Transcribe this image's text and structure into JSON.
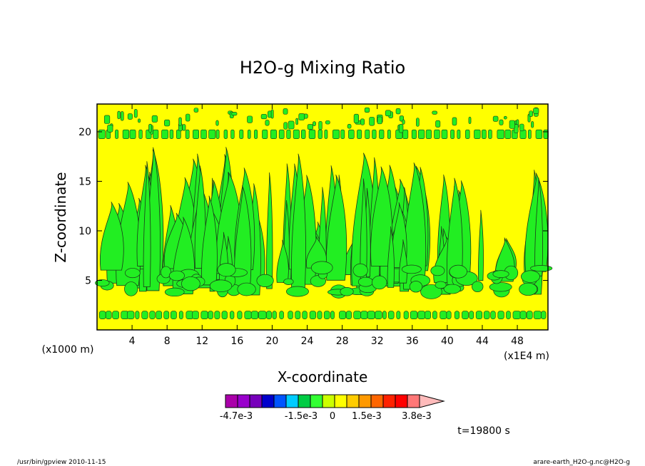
{
  "chart_data": {
    "type": "heatmap",
    "title": "H2O-g Mixing Ratio",
    "xlabel": "X-coordinate",
    "ylabel": "Z-coordinate",
    "x_unit": "(x1E4 m)",
    "y_unit": "(x1000 m)",
    "xlim": [
      0,
      51.5
    ],
    "ylim": [
      0,
      22.8
    ],
    "x_ticks": [
      4,
      8,
      12,
      16,
      20,
      24,
      28,
      32,
      36,
      40,
      44,
      48
    ],
    "y_ticks": [
      5,
      10,
      15,
      20
    ],
    "grid": false,
    "colorbar": {
      "colors": [
        "#aa00aa",
        "#9900cc",
        "#7700bb",
        "#0000cc",
        "#0055ff",
        "#00ccff",
        "#00cc44",
        "#33ff33",
        "#ccff00",
        "#ffff00",
        "#ffcc00",
        "#ff9900",
        "#ff6600",
        "#ff2200",
        "#ff0000",
        "#ff7777",
        "#ffbbbb"
      ],
      "labels": [
        "-4.7e-3",
        "-1.5e-3",
        "0",
        "1.5e-3",
        "3.8e-3"
      ]
    },
    "time_label": "t=19800 s",
    "dominant_fill": "#ffff00",
    "moist_fill": "#22ee22"
  },
  "footer": {
    "left": "/usr/bin/gpview   2010-11-15",
    "right": "arare-earth_H2O-g.nc@H2O-g"
  }
}
